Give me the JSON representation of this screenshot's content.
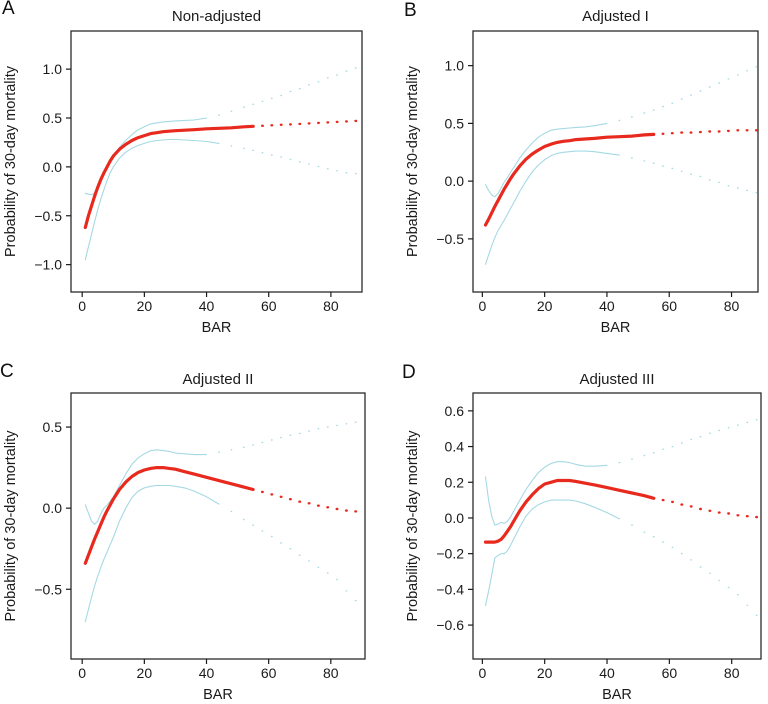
{
  "figure": {
    "background": "#ffffff",
    "estimate_color": "#e8291d",
    "band_color": "#a5d9e4",
    "axis_color": "#2b2b2b",
    "text_color": "#1a1a1a"
  },
  "chart_data": [
    {
      "panel_label": "A",
      "title": "Non-adjusted",
      "xlabel": "BAR",
      "ylabel": "Probability of 30-day mortality",
      "type": "line",
      "grid": false,
      "legend": "none",
      "xlim": [
        -3.6,
        90.0
      ],
      "ylim": [
        -1.28,
        1.39
      ],
      "xticks": [
        0,
        20,
        40,
        60,
        80
      ],
      "xtick_labels": [
        "0",
        "20",
        "40",
        "60",
        "80"
      ],
      "yticks": [
        -1.0,
        -0.5,
        0.0,
        0.5,
        1.0
      ],
      "ytick_labels": [
        "−1.0",
        "−0.5",
        "0.0",
        "0.5",
        "1.0"
      ],
      "x": [
        1,
        2,
        3,
        4,
        5,
        6,
        7,
        8,
        9,
        10,
        12,
        14,
        16,
        18,
        20,
        22,
        24,
        26,
        28,
        30,
        33,
        36,
        40,
        44,
        48,
        52,
        55,
        58,
        61,
        64,
        67,
        70,
        73,
        76,
        79,
        82,
        85,
        88
      ],
      "series": [
        {
          "name": "upper-ci",
          "color": "#a5d9e4",
          "width": 1.1,
          "solid_until": 40,
          "dot": [
            1.8,
            1.4
          ],
          "y": [
            -0.27,
            -0.28,
            -0.285,
            -0.27,
            -0.22,
            -0.15,
            -0.08,
            -0.01,
            0.05,
            0.11,
            0.2,
            0.27,
            0.33,
            0.38,
            0.41,
            0.44,
            0.45,
            0.46,
            0.465,
            0.47,
            0.475,
            0.48,
            0.5,
            0.53,
            0.57,
            0.61,
            0.64,
            0.67,
            0.7,
            0.73,
            0.77,
            0.8,
            0.84,
            0.87,
            0.91,
            0.94,
            0.98,
            1.01
          ]
        },
        {
          "name": "lower-ci",
          "color": "#a5d9e4",
          "width": 1.1,
          "solid_until": 44,
          "dot": [
            1.8,
            1.4
          ],
          "y": [
            -0.95,
            -0.82,
            -0.69,
            -0.56,
            -0.44,
            -0.33,
            -0.23,
            -0.14,
            -0.06,
            0.0,
            0.09,
            0.15,
            0.19,
            0.22,
            0.24,
            0.26,
            0.27,
            0.275,
            0.28,
            0.28,
            0.275,
            0.27,
            0.26,
            0.24,
            0.215,
            0.19,
            0.17,
            0.145,
            0.12,
            0.1,
            0.075,
            0.05,
            0.03,
            0.005,
            -0.02,
            -0.04,
            -0.06,
            -0.07
          ]
        },
        {
          "name": "estimate",
          "color": "#e8291d",
          "width": 3.2,
          "solid_until": 55,
          "dot": [
            3.0,
            2.4
          ],
          "y": [
            -0.62,
            -0.5,
            -0.4,
            -0.3,
            -0.21,
            -0.13,
            -0.06,
            0.0,
            0.06,
            0.11,
            0.18,
            0.23,
            0.27,
            0.3,
            0.32,
            0.34,
            0.35,
            0.36,
            0.365,
            0.37,
            0.375,
            0.38,
            0.39,
            0.395,
            0.4,
            0.41,
            0.415,
            0.42,
            0.425,
            0.43,
            0.435,
            0.44,
            0.445,
            0.45,
            0.455,
            0.46,
            0.465,
            0.47
          ]
        }
      ]
    },
    {
      "panel_label": "B",
      "title": "Adjusted I",
      "xlabel": "BAR",
      "ylabel": "Probability of 30-day mortality",
      "type": "line",
      "grid": false,
      "legend": "none",
      "xlim": [
        -3.0,
        88.5
      ],
      "ylim": [
        -0.96,
        1.3
      ],
      "xticks": [
        0,
        20,
        40,
        60,
        80
      ],
      "xtick_labels": [
        "0",
        "20",
        "40",
        "60",
        "80"
      ],
      "yticks": [
        -0.5,
        0.0,
        0.5,
        1.0
      ],
      "ytick_labels": [
        "−0.5",
        "0.0",
        "0.5",
        "1.0"
      ],
      "x": [
        1,
        2,
        3,
        4,
        5,
        6,
        7,
        8,
        9,
        10,
        12,
        14,
        16,
        18,
        20,
        22,
        24,
        26,
        28,
        30,
        33,
        36,
        40,
        44,
        48,
        52,
        55,
        58,
        61,
        64,
        67,
        70,
        73,
        76,
        79,
        82,
        85,
        88
      ],
      "series": [
        {
          "name": "upper-ci",
          "color": "#a5d9e4",
          "width": 1.1,
          "solid_until": 40,
          "dot": [
            1.8,
            1.4
          ],
          "y": [
            -0.03,
            -0.08,
            -0.12,
            -0.135,
            -0.11,
            -0.06,
            -0.01,
            0.03,
            0.075,
            0.115,
            0.2,
            0.27,
            0.33,
            0.38,
            0.415,
            0.44,
            0.45,
            0.455,
            0.46,
            0.465,
            0.47,
            0.48,
            0.5,
            0.525,
            0.555,
            0.59,
            0.615,
            0.645,
            0.675,
            0.71,
            0.745,
            0.78,
            0.815,
            0.85,
            0.885,
            0.92,
            0.955,
            0.99
          ]
        },
        {
          "name": "lower-ci",
          "color": "#a5d9e4",
          "width": 1.1,
          "solid_until": 44,
          "dot": [
            1.8,
            1.4
          ],
          "y": [
            -0.72,
            -0.64,
            -0.56,
            -0.49,
            -0.43,
            -0.385,
            -0.34,
            -0.29,
            -0.24,
            -0.19,
            -0.09,
            0.0,
            0.08,
            0.14,
            0.185,
            0.22,
            0.24,
            0.25,
            0.255,
            0.26,
            0.26,
            0.255,
            0.24,
            0.225,
            0.2,
            0.175,
            0.155,
            0.13,
            0.11,
            0.085,
            0.06,
            0.04,
            0.01,
            -0.01,
            -0.04,
            -0.06,
            -0.08,
            -0.1
          ]
        },
        {
          "name": "estimate",
          "color": "#e8291d",
          "width": 3.2,
          "solid_until": 55,
          "dot": [
            3.0,
            2.4
          ],
          "y": [
            -0.38,
            -0.33,
            -0.275,
            -0.22,
            -0.17,
            -0.12,
            -0.07,
            -0.025,
            0.02,
            0.06,
            0.13,
            0.19,
            0.235,
            0.27,
            0.3,
            0.32,
            0.335,
            0.345,
            0.35,
            0.36,
            0.365,
            0.37,
            0.38,
            0.385,
            0.39,
            0.4,
            0.405,
            0.41,
            0.415,
            0.42,
            0.42,
            0.425,
            0.43,
            0.43,
            0.435,
            0.44,
            0.44,
            0.44
          ]
        }
      ]
    },
    {
      "panel_label": "C",
      "title": "Adjusted II",
      "xlabel": "BAR",
      "ylabel": "Probability of 30-day mortality",
      "type": "line",
      "grid": false,
      "legend": "none",
      "xlim": [
        -3.6,
        91.0
      ],
      "ylim": [
        -0.93,
        0.71
      ],
      "xticks": [
        0,
        20,
        40,
        60,
        80
      ],
      "xtick_labels": [
        "0",
        "20",
        "40",
        "60",
        "80"
      ],
      "yticks": [
        -0.5,
        0.0,
        0.5
      ],
      "ytick_labels": [
        "−0.5",
        "0.0",
        "0.5"
      ],
      "x": [
        1,
        2,
        3,
        4,
        5,
        6,
        7,
        8,
        9,
        10,
        12,
        14,
        16,
        18,
        20,
        22,
        24,
        26,
        28,
        30,
        33,
        36,
        40,
        44,
        48,
        52,
        55,
        58,
        61,
        64,
        67,
        70,
        73,
        76,
        79,
        82,
        85,
        88
      ],
      "series": [
        {
          "name": "upper-ci",
          "color": "#a5d9e4",
          "width": 1.1,
          "solid_until": 40,
          "dot": [
            1.8,
            1.4
          ],
          "y": [
            0.02,
            -0.03,
            -0.08,
            -0.1,
            -0.08,
            -0.035,
            0.0,
            0.02,
            0.045,
            0.07,
            0.14,
            0.21,
            0.27,
            0.31,
            0.335,
            0.355,
            0.36,
            0.355,
            0.35,
            0.34,
            0.335,
            0.33,
            0.33,
            0.345,
            0.36,
            0.375,
            0.39,
            0.405,
            0.42,
            0.435,
            0.45,
            0.46,
            0.475,
            0.49,
            0.5,
            0.51,
            0.52,
            0.53
          ]
        },
        {
          "name": "lower-ci",
          "color": "#a5d9e4",
          "width": 1.1,
          "solid_until": 44,
          "dot": [
            1.8,
            1.4
          ],
          "y": [
            -0.7,
            -0.625,
            -0.55,
            -0.48,
            -0.42,
            -0.365,
            -0.315,
            -0.27,
            -0.225,
            -0.18,
            -0.08,
            0.0,
            0.065,
            0.105,
            0.125,
            0.135,
            0.14,
            0.14,
            0.14,
            0.135,
            0.125,
            0.105,
            0.07,
            0.025,
            -0.02,
            -0.07,
            -0.105,
            -0.14,
            -0.175,
            -0.215,
            -0.25,
            -0.29,
            -0.325,
            -0.365,
            -0.4,
            -0.44,
            -0.51,
            -0.57
          ]
        },
        {
          "name": "estimate",
          "color": "#e8291d",
          "width": 3.2,
          "solid_until": 55,
          "dot": [
            3.0,
            2.4
          ],
          "y": [
            -0.34,
            -0.29,
            -0.24,
            -0.19,
            -0.145,
            -0.1,
            -0.055,
            -0.015,
            0.02,
            0.055,
            0.115,
            0.16,
            0.195,
            0.22,
            0.235,
            0.245,
            0.25,
            0.25,
            0.245,
            0.24,
            0.225,
            0.21,
            0.19,
            0.17,
            0.15,
            0.13,
            0.115,
            0.1,
            0.085,
            0.07,
            0.055,
            0.04,
            0.03,
            0.015,
            0.005,
            -0.005,
            -0.015,
            -0.02
          ]
        }
      ]
    },
    {
      "panel_label": "D",
      "title": "Adjusted III",
      "xlabel": "BAR",
      "ylabel": "Probability of 30-day mortality",
      "type": "line",
      "grid": false,
      "legend": "none",
      "xlim": [
        -3.0,
        89.4
      ],
      "ylim": [
        -0.79,
        0.7
      ],
      "xticks": [
        0,
        20,
        40,
        60,
        80
      ],
      "xtick_labels": [
        "0",
        "20",
        "40",
        "60",
        "80"
      ],
      "yticks": [
        -0.6,
        -0.4,
        -0.2,
        0.0,
        0.2,
        0.4,
        0.6
      ],
      "ytick_labels": [
        "−0.6",
        "−0.4",
        "−0.2",
        "0.0",
        "0.2",
        "0.4",
        "0.6"
      ],
      "x": [
        1,
        2,
        3,
        4,
        5,
        6,
        7,
        8,
        9,
        10,
        12,
        14,
        16,
        18,
        20,
        22,
        24,
        26,
        28,
        30,
        33,
        36,
        40,
        44,
        48,
        52,
        55,
        58,
        61,
        64,
        67,
        70,
        73,
        76,
        79,
        82,
        85,
        88
      ],
      "series": [
        {
          "name": "upper-ci",
          "color": "#a5d9e4",
          "width": 1.1,
          "solid_until": 40,
          "dot": [
            1.8,
            1.4
          ],
          "y": [
            0.23,
            0.1,
            0.01,
            -0.04,
            -0.035,
            -0.025,
            -0.03,
            -0.02,
            0.005,
            0.035,
            0.1,
            0.16,
            0.21,
            0.255,
            0.285,
            0.305,
            0.315,
            0.315,
            0.31,
            0.3,
            0.29,
            0.29,
            0.295,
            0.31,
            0.33,
            0.35,
            0.365,
            0.385,
            0.4,
            0.42,
            0.44,
            0.455,
            0.475,
            0.49,
            0.505,
            0.52,
            0.535,
            0.55
          ]
        },
        {
          "name": "lower-ci",
          "color": "#a5d9e4",
          "width": 1.1,
          "solid_until": 44,
          "dot": [
            1.8,
            1.4
          ],
          "y": [
            -0.49,
            -0.41,
            -0.32,
            -0.225,
            -0.21,
            -0.2,
            -0.2,
            -0.185,
            -0.155,
            -0.12,
            -0.05,
            0.01,
            0.05,
            0.075,
            0.09,
            0.1,
            0.1,
            0.1,
            0.1,
            0.095,
            0.08,
            0.06,
            0.03,
            -0.005,
            -0.04,
            -0.08,
            -0.105,
            -0.135,
            -0.165,
            -0.2,
            -0.235,
            -0.275,
            -0.31,
            -0.35,
            -0.39,
            -0.43,
            -0.49,
            -0.545
          ]
        },
        {
          "name": "estimate",
          "color": "#e8291d",
          "width": 3.2,
          "solid_until": 55,
          "dot": [
            3.0,
            2.4
          ],
          "y": [
            -0.135,
            -0.135,
            -0.135,
            -0.135,
            -0.13,
            -0.12,
            -0.1,
            -0.075,
            -0.05,
            -0.02,
            0.04,
            0.09,
            0.13,
            0.165,
            0.19,
            0.2,
            0.21,
            0.21,
            0.21,
            0.205,
            0.195,
            0.185,
            0.17,
            0.155,
            0.14,
            0.125,
            0.11,
            0.1,
            0.09,
            0.075,
            0.065,
            0.05,
            0.04,
            0.03,
            0.025,
            0.015,
            0.01,
            0.005
          ]
        }
      ]
    }
  ]
}
